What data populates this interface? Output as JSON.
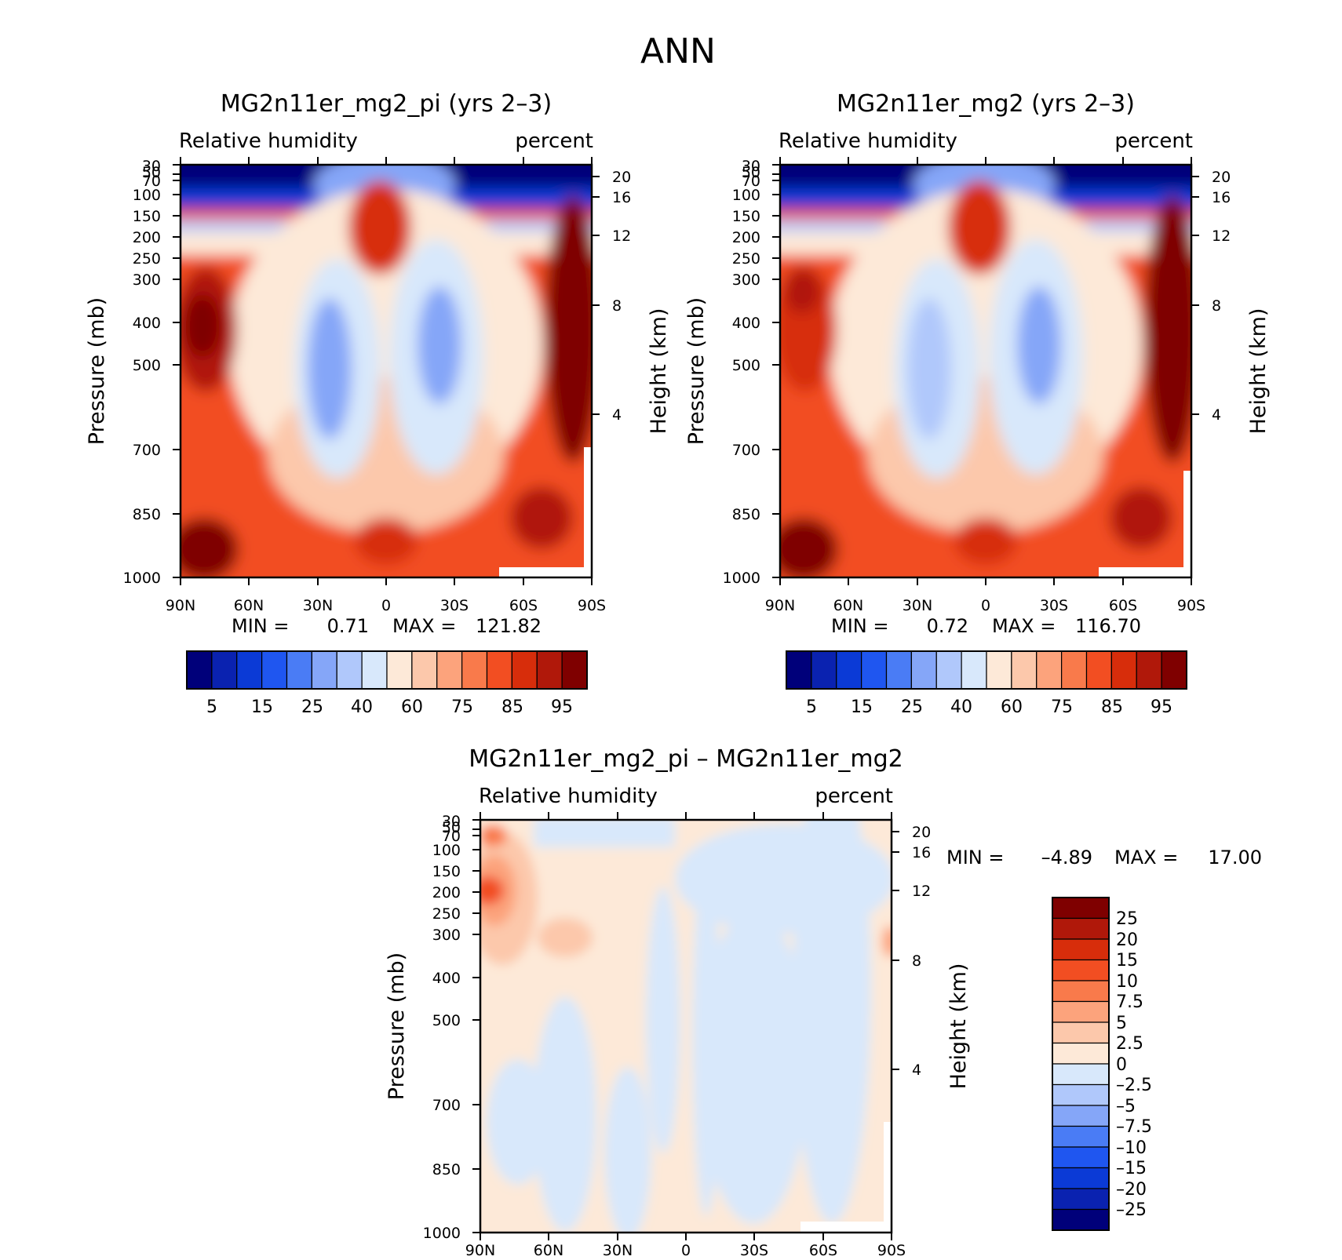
{
  "figure_title": "ANN",
  "colors": {
    "full_field": [
      "#00007a",
      "#0a22b0",
      "#0b3ad6",
      "#1f56f0",
      "#4a7cf5",
      "#85a6f8",
      "#b0c8fb",
      "#d8e8fb",
      "#fde9d8",
      "#fcc8ab",
      "#fca37c",
      "#f97a4b",
      "#f24e22",
      "#d72d0b",
      "#b0180a",
      "#7f0000"
    ],
    "difference": [
      "#00007a",
      "#0a22b0",
      "#0b3ad6",
      "#1f56f0",
      "#4a7cf5",
      "#85a6f8",
      "#b0c8fb",
      "#d8e8fb",
      "#fde9d8",
      "#fcc8ab",
      "#fca37c",
      "#f97a4b",
      "#f24e22",
      "#d72d0b",
      "#b0180a",
      "#7f0000"
    ]
  },
  "chart_data": [
    {
      "type": "contour",
      "title": "MG2n11er_mg2_pi (yrs 2–3)",
      "left_string": "Relative humidity",
      "right_string": "percent",
      "xlabel": "",
      "ylabel": "Pressure (mb)",
      "y2label": "Height (km)",
      "x_ticks": [
        "90N",
        "60N",
        "30N",
        "0",
        "30S",
        "60S",
        "90S"
      ],
      "x_range": [
        90,
        -90
      ],
      "y_ticks": [
        30,
        50,
        70,
        100,
        150,
        200,
        250,
        300,
        400,
        500,
        700,
        850,
        1000
      ],
      "y_range": [
        30,
        1000
      ],
      "y2_ticks": [
        20,
        16,
        12,
        8,
        4
      ],
      "min_label": "MIN =",
      "min_value": "0.71",
      "max_label": "MAX =",
      "max_value": "121.82",
      "contour_levels": [
        5,
        10,
        15,
        20,
        25,
        30,
        40,
        50,
        60,
        70,
        75,
        80,
        85,
        90,
        95
      ],
      "colorbar_labels": [
        "5",
        "15",
        "25",
        "40",
        "60",
        "75",
        "85",
        "95"
      ]
    },
    {
      "type": "contour",
      "title": "MG2n11er_mg2 (yrs 2–3)",
      "left_string": "Relative humidity",
      "right_string": "percent",
      "xlabel": "",
      "ylabel": "Pressure (mb)",
      "y2label": "Height (km)",
      "x_ticks": [
        "90N",
        "60N",
        "30N",
        "0",
        "30S",
        "60S",
        "90S"
      ],
      "x_range": [
        90,
        -90
      ],
      "y_ticks": [
        30,
        50,
        70,
        100,
        150,
        200,
        250,
        300,
        400,
        500,
        700,
        850,
        1000
      ],
      "y_range": [
        30,
        1000
      ],
      "y2_ticks": [
        20,
        16,
        12,
        8,
        4
      ],
      "min_label": "MIN =",
      "min_value": "0.72",
      "max_label": "MAX =",
      "max_value": "116.70",
      "contour_levels": [
        5,
        10,
        15,
        20,
        25,
        30,
        40,
        50,
        60,
        70,
        75,
        80,
        85,
        90,
        95
      ],
      "colorbar_labels": [
        "5",
        "15",
        "25",
        "40",
        "60",
        "75",
        "85",
        "95"
      ]
    },
    {
      "type": "contour",
      "title": "MG2n11er_mg2_pi – MG2n11er_mg2",
      "left_string": "Relative humidity",
      "right_string": "percent",
      "xlabel": "",
      "ylabel": "Pressure (mb)",
      "y2label": "Height (km)",
      "x_ticks": [
        "90N",
        "60N",
        "30N",
        "0",
        "30S",
        "60S",
        "90S"
      ],
      "x_range": [
        90,
        -90
      ],
      "y_ticks": [
        30,
        50,
        70,
        100,
        150,
        200,
        250,
        300,
        400,
        500,
        700,
        850,
        1000
      ],
      "y_range": [
        30,
        1000
      ],
      "y2_ticks": [
        20,
        16,
        12,
        8,
        4
      ],
      "min_label": "MIN =",
      "min_value": "–4.89",
      "max_label": "MAX =",
      "max_value": "17.00",
      "contour_levels": [
        -25,
        -20,
        -15,
        -10,
        -7.5,
        -5,
        -2.5,
        0,
        2.5,
        5,
        7.5,
        10,
        15,
        20,
        25
      ],
      "colorbar_labels": [
        "25",
        "20",
        "15",
        "10",
        "7.5",
        "5",
        "2.5",
        "0",
        "–2.5",
        "–5",
        "–7.5",
        "–10",
        "–15",
        "–20",
        "–25"
      ]
    }
  ]
}
